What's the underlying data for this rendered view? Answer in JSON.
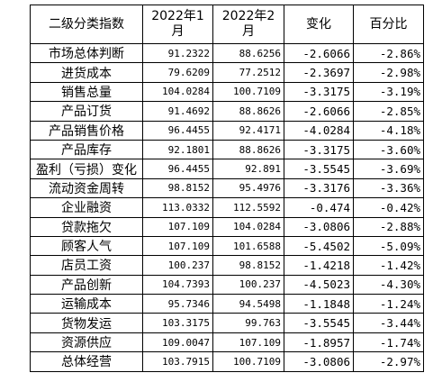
{
  "table": {
    "header": [
      "二级分类指数",
      "2022年1月",
      "2022年2月",
      "变化",
      "百分比"
    ],
    "rows": [
      [
        "市场总体判断",
        "91.2322",
        "88.6256",
        "-2.6066",
        "-2.86%"
      ],
      [
        "进货成本",
        "79.6209",
        "77.2512",
        "-2.3697",
        "-2.98%"
      ],
      [
        "销售总量",
        "104.0284",
        "100.7109",
        "-3.3175",
        "-3.19%"
      ],
      [
        "产品订货",
        "91.4692",
        "88.8626",
        "-2.6066",
        "-2.85%"
      ],
      [
        "产品销售价格",
        "96.4455",
        "92.4171",
        "-4.0284",
        "-4.18%"
      ],
      [
        "产品库存",
        "92.1801",
        "88.8626",
        "-3.3175",
        "-3.60%"
      ],
      [
        "盈利（亏损）变化",
        "96.4455",
        "92.891",
        "-3.5545",
        "-3.69%"
      ],
      [
        "流动资金周转",
        "98.8152",
        "95.4976",
        "-3.3176",
        "-3.36%"
      ],
      [
        "企业融资",
        "113.0332",
        "112.5592",
        "-0.474",
        "-0.42%"
      ],
      [
        "贷款拖欠",
        "107.109",
        "104.0284",
        "-3.0806",
        "-2.88%"
      ],
      [
        "顾客人气",
        "107.109",
        "101.6588",
        "-5.4502",
        "-5.09%"
      ],
      [
        "店员工资",
        "100.237",
        "98.8152",
        "-1.4218",
        "-1.42%"
      ],
      [
        "产品创新",
        "104.7393",
        "100.237",
        "-4.5023",
        "-4.30%"
      ],
      [
        "运输成本",
        "95.7346",
        "94.5498",
        "-1.1848",
        "-1.24%"
      ],
      [
        "货物发运",
        "103.3175",
        "99.763",
        "-3.5545",
        "-3.44%"
      ],
      [
        "资源供应",
        "109.0047",
        "107.109",
        "-1.8957",
        "-1.74%"
      ],
      [
        "总体经营",
        "103.7915",
        "100.7109",
        "-3.0806",
        "-2.97%"
      ]
    ]
  }
}
